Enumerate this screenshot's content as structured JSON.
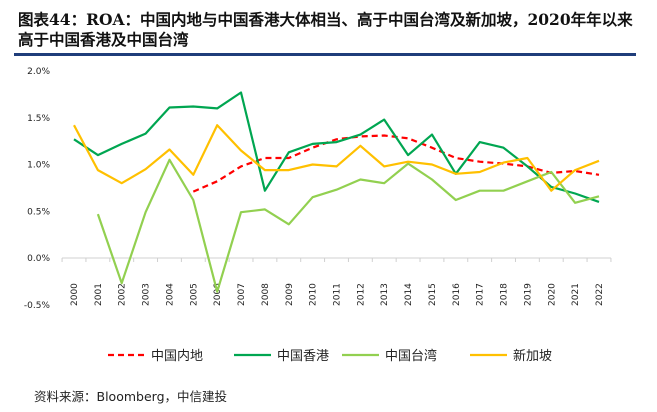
{
  "title": "图表44：ROA：中国内地与中国香港大体相当、高于中国台湾及新加坡，2020年年以来高于中国香港及中国台湾",
  "source": "资料来源：Bloomberg，中信建投",
  "chart_data": {
    "type": "line",
    "x": [
      "2000",
      "2001",
      "2002",
      "2003",
      "2004",
      "2005",
      "2006",
      "2007",
      "2008",
      "2009",
      "2010",
      "2011",
      "2012",
      "2013",
      "2014",
      "2015",
      "2016",
      "2017",
      "2018",
      "2019",
      "2020",
      "2021",
      "2022"
    ],
    "yticks": [
      "2.0%",
      "1.5%",
      "1.0%",
      "0.5%",
      "0.0%",
      "-0.5%"
    ],
    "ylim": [
      -0.5,
      2.0
    ],
    "unit": "%",
    "grid": false,
    "legend": "bottom",
    "series": [
      {
        "name": "中国内地",
        "color": "#ff0000",
        "dash": true,
        "values": [
          null,
          null,
          null,
          null,
          null,
          0.71,
          0.82,
          0.98,
          1.07,
          1.07,
          1.18,
          1.27,
          1.3,
          1.31,
          1.28,
          1.18,
          1.07,
          1.03,
          1.01,
          0.98,
          0.91,
          0.93,
          0.89
        ]
      },
      {
        "name": "中国香港",
        "color": "#00a651",
        "dash": false,
        "values": [
          1.27,
          1.1,
          1.22,
          1.33,
          1.61,
          1.62,
          1.6,
          1.77,
          0.72,
          1.13,
          1.22,
          1.24,
          1.32,
          1.48,
          1.1,
          1.32,
          0.9,
          1.24,
          1.18,
          0.98,
          0.76,
          0.69,
          0.6
        ]
      },
      {
        "name": "中国台湾",
        "color": "#92d050",
        "dash": false,
        "values": [
          null,
          0.47,
          -0.27,
          0.49,
          1.05,
          0.62,
          -0.36,
          0.49,
          0.52,
          0.36,
          0.65,
          0.73,
          0.84,
          0.8,
          1.01,
          0.84,
          0.62,
          0.72,
          0.72,
          0.82,
          0.92,
          0.59,
          0.66
        ]
      },
      {
        "name": "新加坡",
        "color": "#ffc000",
        "dash": false,
        "values": [
          1.42,
          0.94,
          0.8,
          0.95,
          1.16,
          0.89,
          1.42,
          1.15,
          0.94,
          0.94,
          1.0,
          0.98,
          1.2,
          0.98,
          1.03,
          1.0,
          0.9,
          0.92,
          1.02,
          1.07,
          0.72,
          0.94,
          1.04
        ]
      }
    ]
  }
}
